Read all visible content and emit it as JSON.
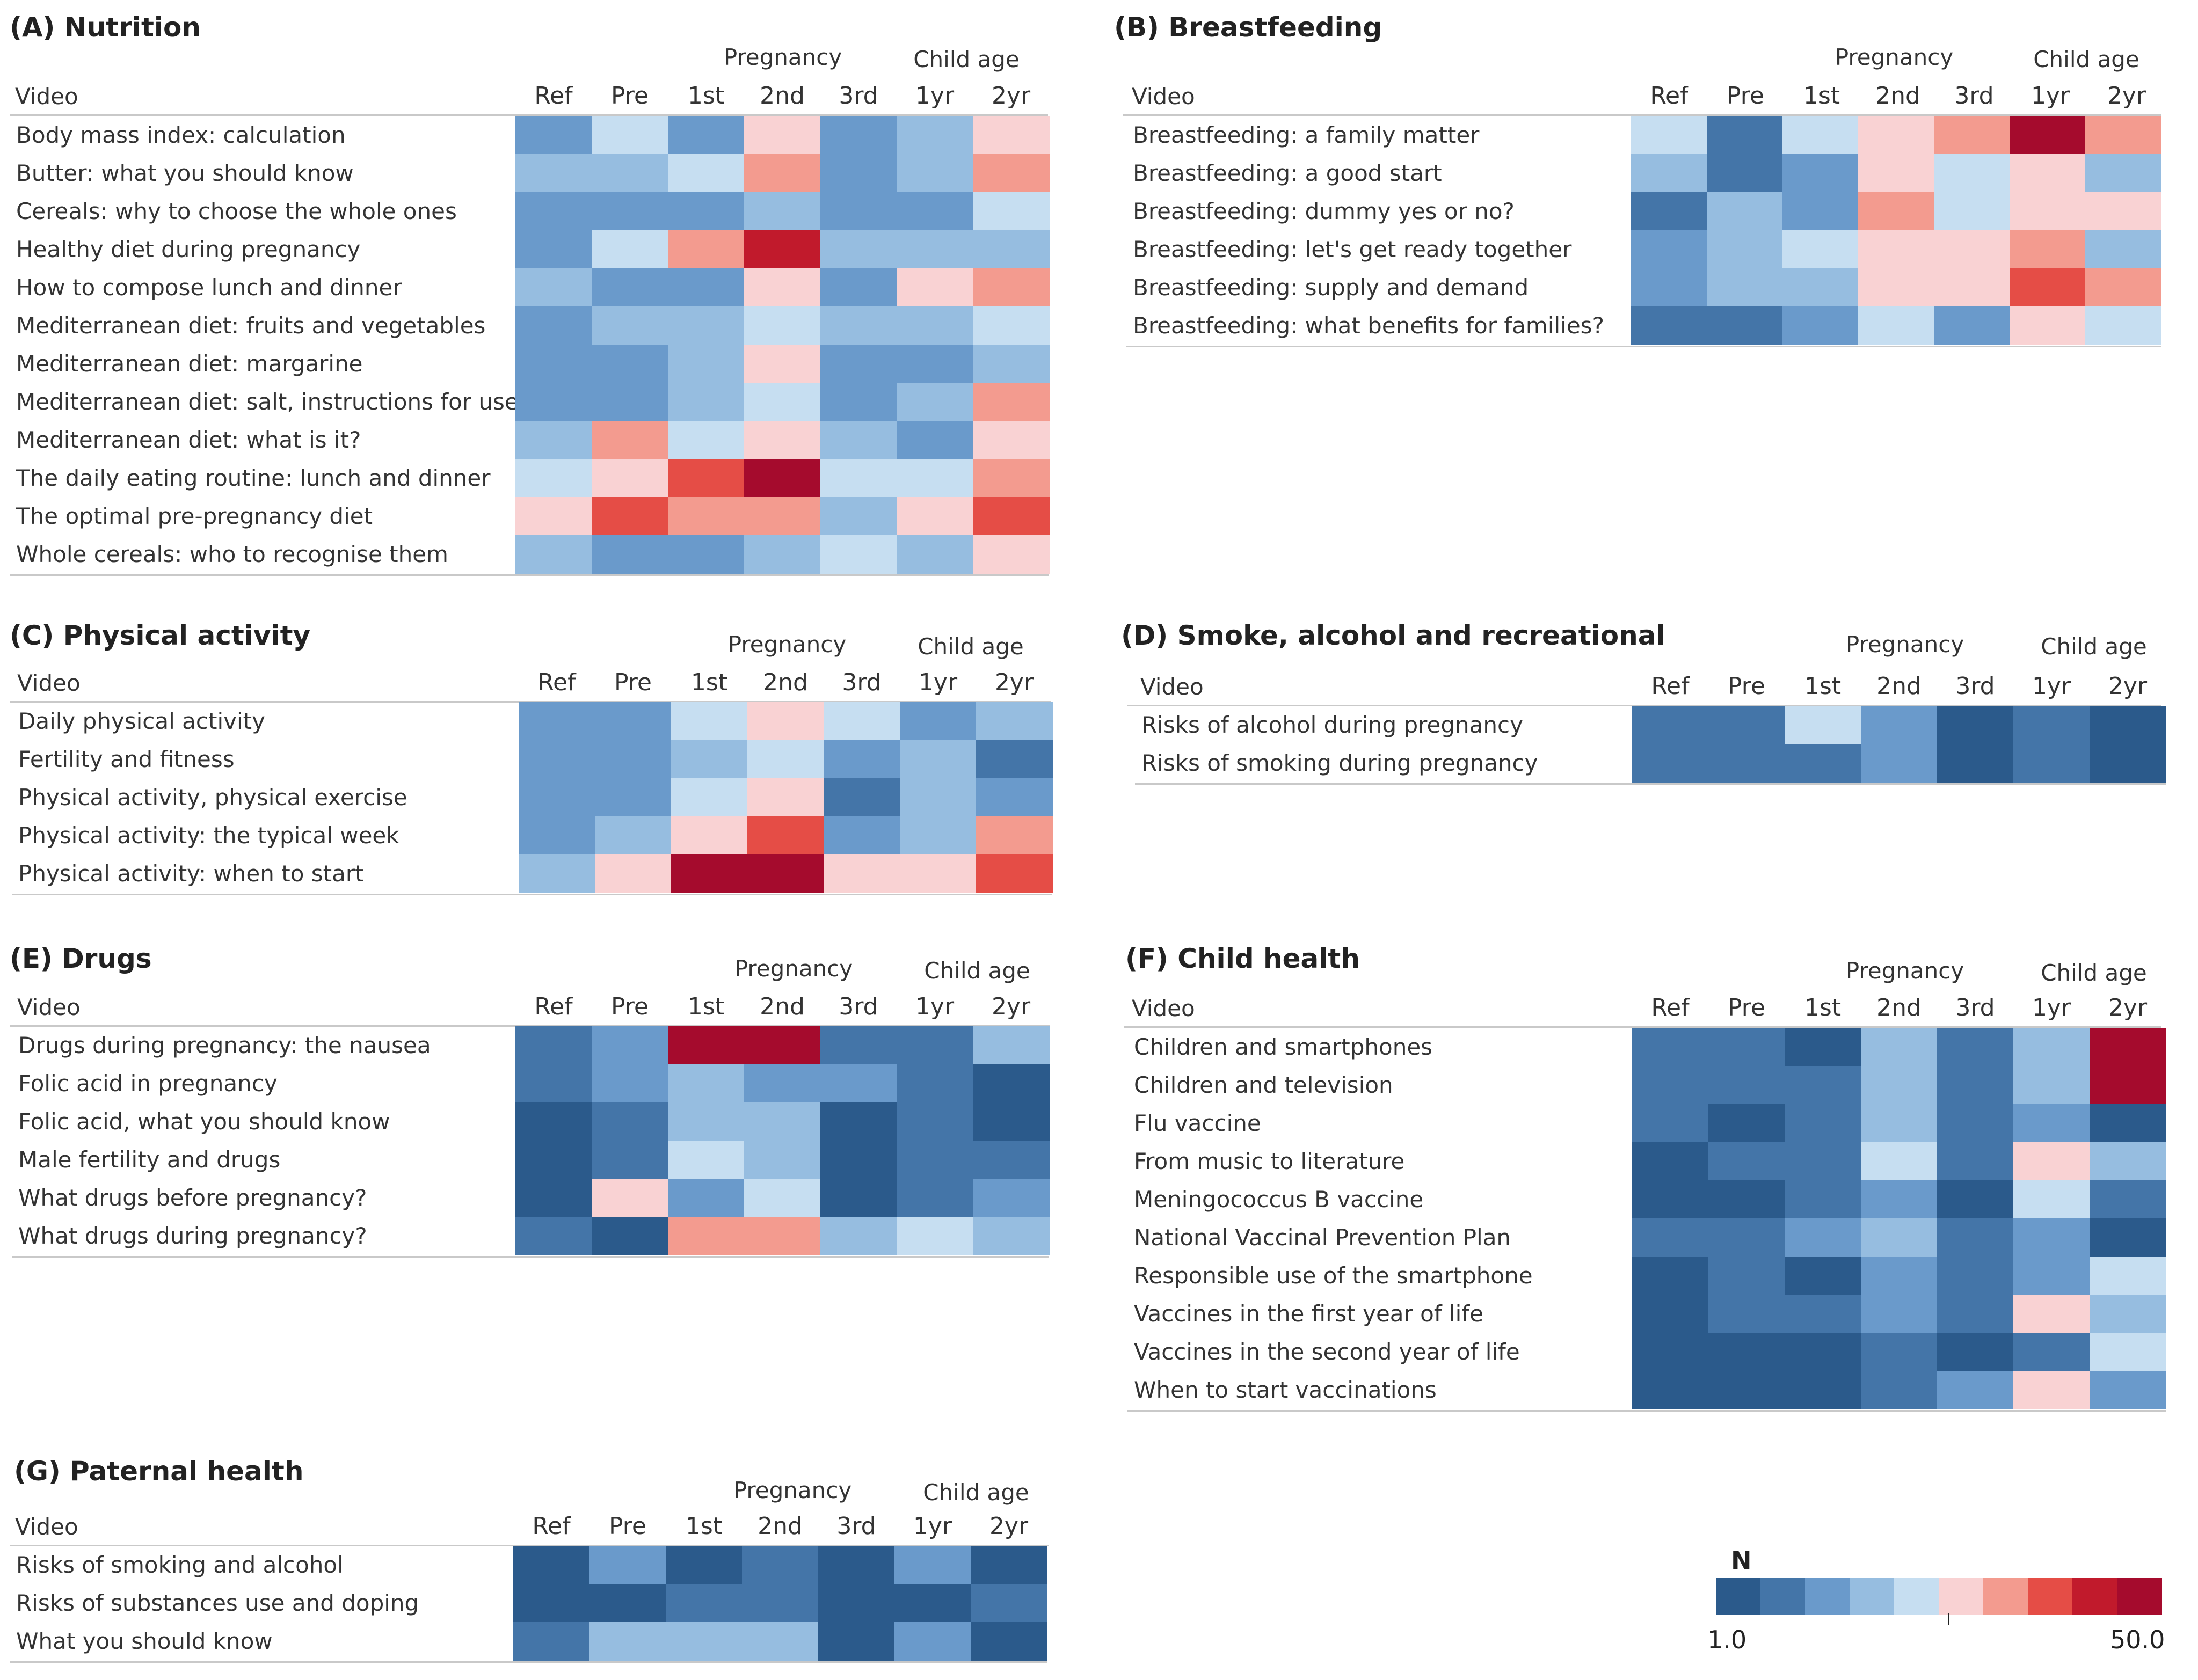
{
  "chart_data": {
    "type": "heatmap",
    "columns": [
      "Ref",
      "Pre",
      "1st",
      "2nd",
      "3rd",
      "1yr",
      "2yr"
    ],
    "column_groups": [
      {
        "label": "Pregnancy",
        "span": [
          "1st",
          "2nd",
          "3rd"
        ]
      },
      {
        "label": "Child age",
        "span": [
          "1yr",
          "2yr"
        ]
      }
    ],
    "row_header": "Video",
    "scale": {
      "title": "N",
      "min": 1.0,
      "max": 50.0,
      "min_label": "1.0",
      "max_label": "50.0",
      "colors": [
        "#2b5a8b",
        "#4475a8",
        "#6a9acb",
        "#96bde0",
        "#c6def1",
        "#f9d2d3",
        "#f39b8f",
        "#e54d46",
        "#c11a2c",
        "#a50b2d"
      ]
    },
    "panels": [
      {
        "title": "(A) Nutrition",
        "pregnancy_label": "Pregnancy",
        "child_label": "Child age",
        "rows": [
          {
            "label": "Body mass index: calculation",
            "levels": [
              2,
              4,
              2,
              5,
              2,
              3,
              5
            ]
          },
          {
            "label": "Butter: what you should know",
            "levels": [
              3,
              3,
              4,
              6,
              2,
              3,
              6
            ]
          },
          {
            "label": "Cereals: why to choose the whole ones",
            "levels": [
              2,
              2,
              2,
              3,
              2,
              2,
              4
            ]
          },
          {
            "label": "Healthy diet during pregnancy",
            "levels": [
              2,
              4,
              6,
              8,
              3,
              3,
              3
            ]
          },
          {
            "label": "How to compose lunch and dinner",
            "levels": [
              3,
              2,
              2,
              5,
              2,
              5,
              6
            ]
          },
          {
            "label": "Mediterranean diet: fruits and vegetables",
            "levels": [
              2,
              3,
              3,
              4,
              3,
              3,
              4
            ]
          },
          {
            "label": "Mediterranean diet: margarine",
            "levels": [
              2,
              2,
              3,
              5,
              2,
              2,
              3
            ]
          },
          {
            "label": "Mediterranean diet: salt, instructions for use",
            "levels": [
              2,
              2,
              3,
              4,
              2,
              3,
              6
            ]
          },
          {
            "label": "Mediterranean diet: what is it?",
            "levels": [
              3,
              6,
              4,
              5,
              3,
              2,
              5
            ]
          },
          {
            "label": "The daily eating routine: lunch and dinner",
            "levels": [
              4,
              5,
              7,
              9,
              4,
              4,
              6
            ]
          },
          {
            "label": "The optimal pre-pregnancy diet",
            "levels": [
              5,
              7,
              6,
              6,
              3,
              5,
              7
            ]
          },
          {
            "label": "Whole cereals: who to recognise them",
            "levels": [
              3,
              2,
              2,
              3,
              4,
              3,
              5
            ]
          }
        ]
      },
      {
        "title": "(B) Breastfeeding",
        "pregnancy_label": "Pregnancy",
        "child_label": "Child age",
        "rows": [
          {
            "label": "Breastfeeding: a family matter",
            "levels": [
              4,
              1,
              4,
              5,
              6,
              9,
              6
            ]
          },
          {
            "label": "Breastfeeding: a good start",
            "levels": [
              3,
              1,
              2,
              5,
              4,
              5,
              3
            ]
          },
          {
            "label": "Breastfeeding: dummy yes or no?",
            "levels": [
              1,
              3,
              2,
              6,
              4,
              5,
              5
            ]
          },
          {
            "label": "Breastfeeding: let's get ready together",
            "levels": [
              2,
              3,
              4,
              5,
              5,
              6,
              3
            ]
          },
          {
            "label": "Breastfeeding: supply and demand",
            "levels": [
              2,
              3,
              3,
              5,
              5,
              7,
              6
            ]
          },
          {
            "label": "Breastfeeding: what benefits for families?",
            "levels": [
              1,
              1,
              2,
              4,
              2,
              5,
              4
            ]
          }
        ]
      },
      {
        "title": "(C) Physical activity",
        "pregnancy_label": "Pregnancy",
        "child_label": "Child age",
        "rows": [
          {
            "label": "Daily physical activity",
            "levels": [
              2,
              2,
              4,
              5,
              4,
              2,
              3
            ]
          },
          {
            "label": "Fertility and fitness",
            "levels": [
              2,
              2,
              3,
              4,
              2,
              3,
              1
            ]
          },
          {
            "label": "Physical activity, physical exercise",
            "levels": [
              2,
              2,
              4,
              5,
              1,
              3,
              2
            ]
          },
          {
            "label": "Physical activity: the typical week",
            "levels": [
              2,
              3,
              5,
              7,
              2,
              3,
              6
            ]
          },
          {
            "label": "Physical activity: when to start",
            "levels": [
              3,
              5,
              9,
              9,
              5,
              5,
              7
            ]
          }
        ]
      },
      {
        "title": "(D) Smoke, alcohol and recreational",
        "pregnancy_label": "Pregnancy",
        "child_label": "Child age",
        "rows": [
          {
            "label": "Risks of alcohol during pregnancy",
            "levels": [
              1,
              1,
              4,
              2,
              0,
              1,
              0
            ]
          },
          {
            "label": "Risks of smoking during pregnancy",
            "levels": [
              1,
              1,
              1,
              2,
              0,
              1,
              0
            ]
          }
        ]
      },
      {
        "title": "(E) Drugs",
        "pregnancy_label": "Pregnancy",
        "child_label": "Child age",
        "rows": [
          {
            "label": "Drugs during pregnancy: the nausea",
            "levels": [
              1,
              2,
              9,
              9,
              1,
              1,
              3
            ]
          },
          {
            "label": "Folic acid in pregnancy",
            "levels": [
              1,
              2,
              3,
              2,
              2,
              1,
              0
            ]
          },
          {
            "label": "Folic acid, what you should know",
            "levels": [
              0,
              1,
              3,
              3,
              0,
              1,
              0
            ]
          },
          {
            "label": "Male fertility and drugs",
            "levels": [
              0,
              1,
              4,
              3,
              0,
              1,
              1
            ]
          },
          {
            "label": "What drugs before pregnancy?",
            "levels": [
              0,
              5,
              2,
              4,
              0,
              1,
              2
            ]
          },
          {
            "label": "What drugs during pregnancy?",
            "levels": [
              1,
              0,
              6,
              6,
              3,
              4,
              3
            ]
          }
        ]
      },
      {
        "title": "(F)  Child health",
        "pregnancy_label": "Pregnancy",
        "child_label": "Child age",
        "rows": [
          {
            "label": "Children and smartphones",
            "levels": [
              1,
              1,
              0,
              3,
              1,
              3,
              9
            ]
          },
          {
            "label": "Children and television",
            "levels": [
              1,
              1,
              1,
              3,
              1,
              3,
              9
            ]
          },
          {
            "label": "Flu vaccine",
            "levels": [
              1,
              0,
              1,
              3,
              1,
              2,
              0
            ]
          },
          {
            "label": "From music to literature",
            "levels": [
              0,
              1,
              1,
              4,
              1,
              5,
              3
            ]
          },
          {
            "label": "Meningococcus B vaccine",
            "levels": [
              0,
              0,
              1,
              2,
              0,
              4,
              1
            ]
          },
          {
            "label": "National Vaccinal Prevention Plan",
            "levels": [
              1,
              1,
              2,
              3,
              1,
              2,
              0
            ]
          },
          {
            "label": "Responsible use of the smartphone",
            "levels": [
              0,
              1,
              0,
              2,
              1,
              2,
              4
            ]
          },
          {
            "label": "Vaccines in the first year of life",
            "levels": [
              0,
              1,
              1,
              2,
              1,
              5,
              3
            ]
          },
          {
            "label": "Vaccines in the second year of life",
            "levels": [
              0,
              0,
              0,
              1,
              0,
              1,
              4
            ]
          },
          {
            "label": "When to start vaccinations",
            "levels": [
              0,
              0,
              0,
              1,
              2,
              5,
              2
            ]
          }
        ]
      },
      {
        "title": "(G)  Paternal health",
        "pregnancy_label": "Pregnancy",
        "child_label": "Child age",
        "rows": [
          {
            "label": "Risks of smoking and alcohol",
            "levels": [
              0,
              2,
              0,
              1,
              0,
              2,
              0
            ]
          },
          {
            "label": "Risks of substances use and doping",
            "levels": [
              0,
              0,
              1,
              1,
              0,
              0,
              1
            ]
          },
          {
            "label": "What you should know",
            "levels": [
              1,
              3,
              3,
              3,
              0,
              2,
              0
            ]
          }
        ]
      }
    ]
  }
}
